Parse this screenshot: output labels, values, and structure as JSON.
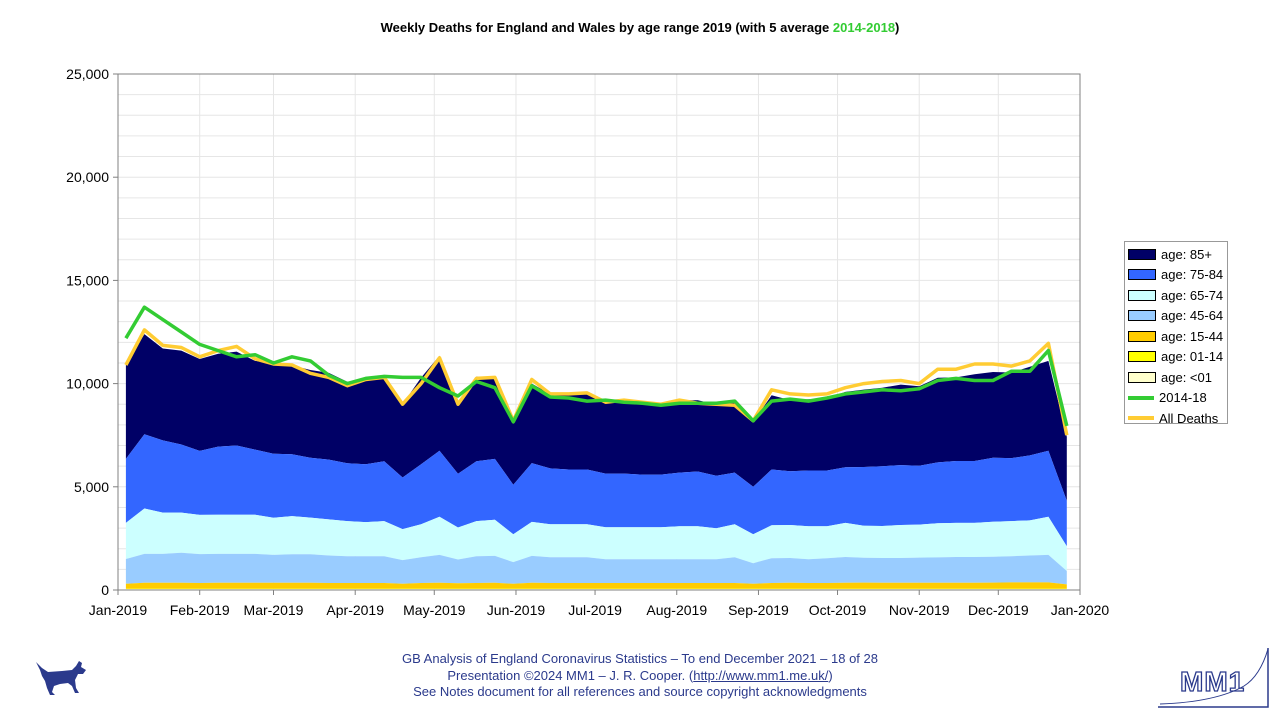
{
  "title": {
    "prefix": "Weekly Deaths for England and Wales by age range 2019 (with 5 average ",
    "highlight": "2014-2018",
    "suffix": ")"
  },
  "footer": {
    "line1": "GB Analysis of England Coronavirus Statistics – To end December 2021 – 18 of 28",
    "line2_prefix": "Presentation ©2024 MM1 – J. R. Cooper. (",
    "line2_link": "http://www.mm1.me.uk/",
    "line2_suffix": ")",
    "line3": "See Notes document for all references and source copyright acknowledgments"
  },
  "logo": {
    "text": "MM1"
  },
  "colors": {
    "age_85": "#000066",
    "age_75_84": "#3366ff",
    "age_65_74": "#ccffff",
    "age_45_64": "#99ccff",
    "age_15_44": "#ffcc00",
    "age_01_14": "#ffff00",
    "age_lt01": "#ffffcc",
    "avg": "#33cc33",
    "all": "#ffcc33",
    "brand": "#2b3a8c"
  },
  "chart_data": {
    "type": "area",
    "title": "Weekly Deaths for England and Wales by age range 2019 (with 5 average 2014-2018)",
    "xlabel": "",
    "ylabel": "",
    "ylim": [
      0,
      25000
    ],
    "yticks": [
      0,
      5000,
      10000,
      15000,
      20000,
      25000
    ],
    "ytick_labels": [
      "0",
      "5,000",
      "10,000",
      "15,000",
      "20,000",
      "25,000"
    ],
    "xlim": [
      "2019-01-01",
      "2020-01-01"
    ],
    "xtick_labels": [
      "Jan-2019",
      "Feb-2019",
      "Mar-2019",
      "Apr-2019",
      "May-2019",
      "Jun-2019",
      "Jul-2019",
      "Aug-2019",
      "Sep-2019",
      "Oct-2019",
      "Nov-2019",
      "Dec-2019",
      "Jan-2020"
    ],
    "grid": true,
    "legend_position": "right",
    "legend": [
      "age: 85+",
      "age: 75-84",
      "age: 65-74",
      "age: 45-64",
      "age: 15-44",
      "age: 01-14",
      "age: <01",
      "2014-18",
      "All Deaths"
    ],
    "x": [
      "2019-01-04",
      "2019-01-11",
      "2019-01-18",
      "2019-01-25",
      "2019-02-01",
      "2019-02-08",
      "2019-02-15",
      "2019-02-22",
      "2019-03-01",
      "2019-03-08",
      "2019-03-15",
      "2019-03-22",
      "2019-03-29",
      "2019-04-05",
      "2019-04-12",
      "2019-04-19",
      "2019-04-26",
      "2019-05-03",
      "2019-05-10",
      "2019-05-17",
      "2019-05-24",
      "2019-05-31",
      "2019-06-07",
      "2019-06-14",
      "2019-06-21",
      "2019-06-28",
      "2019-07-05",
      "2019-07-12",
      "2019-07-19",
      "2019-07-26",
      "2019-08-02",
      "2019-08-09",
      "2019-08-16",
      "2019-08-23",
      "2019-08-30",
      "2019-09-06",
      "2019-09-13",
      "2019-09-20",
      "2019-09-27",
      "2019-10-04",
      "2019-10-11",
      "2019-10-18",
      "2019-10-25",
      "2019-11-01",
      "2019-11-08",
      "2019-11-15",
      "2019-11-22",
      "2019-11-29",
      "2019-12-06",
      "2019-12-13",
      "2019-12-20",
      "2019-12-27"
    ],
    "series": [
      {
        "name": "age: <01",
        "values": [
          50,
          50,
          50,
          50,
          50,
          50,
          50,
          50,
          50,
          50,
          50,
          50,
          50,
          50,
          50,
          50,
          50,
          50,
          50,
          50,
          50,
          50,
          50,
          50,
          50,
          50,
          50,
          50,
          50,
          50,
          50,
          50,
          50,
          50,
          50,
          50,
          50,
          50,
          50,
          50,
          50,
          50,
          50,
          50,
          50,
          50,
          50,
          50,
          50,
          50,
          50,
          50
        ]
      },
      {
        "name": "age: 01-14",
        "values": [
          20,
          20,
          20,
          20,
          20,
          20,
          20,
          20,
          20,
          20,
          20,
          20,
          20,
          20,
          20,
          20,
          20,
          20,
          20,
          20,
          20,
          20,
          20,
          20,
          20,
          20,
          20,
          20,
          20,
          20,
          20,
          20,
          20,
          20,
          20,
          20,
          20,
          20,
          20,
          20,
          20,
          20,
          20,
          20,
          20,
          20,
          20,
          20,
          20,
          20,
          20,
          20
        ]
      },
      {
        "name": "age: 15-44",
        "values": [
          230,
          280,
          280,
          280,
          270,
          280,
          280,
          280,
          280,
          280,
          280,
          270,
          270,
          270,
          270,
          230,
          270,
          280,
          260,
          270,
          280,
          230,
          280,
          270,
          270,
          270,
          270,
          270,
          270,
          270,
          270,
          270,
          270,
          270,
          230,
          270,
          280,
          270,
          270,
          280,
          290,
          280,
          280,
          280,
          280,
          280,
          280,
          290,
          300,
          300,
          300,
          200
        ]
      },
      {
        "name": "age: 45-64",
        "values": [
          1200,
          1400,
          1400,
          1450,
          1400,
          1400,
          1400,
          1400,
          1350,
          1380,
          1380,
          1330,
          1300,
          1300,
          1300,
          1150,
          1250,
          1350,
          1150,
          1300,
          1300,
          1050,
          1300,
          1250,
          1250,
          1250,
          1150,
          1150,
          1150,
          1150,
          1150,
          1150,
          1150,
          1250,
          1000,
          1200,
          1200,
          1150,
          1200,
          1250,
          1200,
          1200,
          1200,
          1220,
          1230,
          1250,
          1250,
          1250,
          1270,
          1300,
          1330,
          650
        ]
      },
      {
        "name": "age: 65-74",
        "values": [
          1750,
          2200,
          2000,
          1950,
          1900,
          1900,
          1900,
          1900,
          1800,
          1850,
          1780,
          1750,
          1700,
          1650,
          1700,
          1500,
          1600,
          1850,
          1550,
          1700,
          1750,
          1350,
          1650,
          1600,
          1600,
          1600,
          1550,
          1550,
          1550,
          1550,
          1600,
          1600,
          1500,
          1600,
          1400,
          1600,
          1600,
          1600,
          1550,
          1650,
          1550,
          1550,
          1600,
          1600,
          1650,
          1650,
          1650,
          1700,
          1700,
          1700,
          1850,
          1200
        ]
      },
      {
        "name": "age: 75-84",
        "values": [
          3100,
          3600,
          3500,
          3300,
          3100,
          3300,
          3350,
          3150,
          3100,
          3000,
          2900,
          2900,
          2800,
          2800,
          2900,
          2500,
          2900,
          3200,
          2600,
          2900,
          2950,
          2400,
          2850,
          2700,
          2650,
          2650,
          2600,
          2600,
          2550,
          2550,
          2600,
          2650,
          2550,
          2500,
          2300,
          2700,
          2600,
          2700,
          2700,
          2700,
          2850,
          2900,
          2900,
          2850,
          2950,
          3000,
          3000,
          3100,
          3050,
          3150,
          3200,
          2200
        ]
      },
      {
        "name": "age: 85+",
        "values": [
          4550,
          4850,
          4450,
          4550,
          4450,
          4500,
          4550,
          4300,
          4400,
          4300,
          4250,
          4200,
          3950,
          4050,
          4000,
          3550,
          4200,
          4600,
          3350,
          4100,
          3950,
          2950,
          3850,
          3600,
          3650,
          3700,
          3450,
          3550,
          3500,
          3450,
          3500,
          3450,
          3450,
          3400,
          3150,
          3600,
          3450,
          3450,
          3500,
          3650,
          3750,
          3800,
          3900,
          3850,
          4100,
          4050,
          4200,
          4150,
          4150,
          4300,
          4350,
          3100
        ]
      },
      {
        "name": "2014-18",
        "values": [
          12200,
          13700,
          13100,
          12500,
          11900,
          11600,
          11300,
          11400,
          11000,
          11300,
          11100,
          10400,
          10000,
          10250,
          10350,
          10300,
          10300,
          9800,
          9400,
          10100,
          9800,
          8150,
          9900,
          9350,
          9300,
          9150,
          9200,
          9100,
          9050,
          8950,
          9050,
          9050,
          9050,
          9150,
          8200,
          9150,
          9250,
          9150,
          9300,
          9500,
          9600,
          9700,
          9650,
          9750,
          10150,
          10250,
          10150,
          10150,
          10600,
          10600,
          11600,
          7950
        ]
      },
      {
        "name": "All Deaths",
        "values": [
          10900,
          12600,
          11850,
          11750,
          11300,
          11600,
          11800,
          11200,
          10950,
          10900,
          10500,
          10300,
          9900,
          10200,
          10300,
          9000,
          10000,
          11250,
          9000,
          10250,
          10300,
          8200,
          10200,
          9500,
          9500,
          9550,
          9100,
          9200,
          9100,
          9000,
          9200,
          9050,
          9000,
          8950,
          8200,
          9700,
          9500,
          9450,
          9500,
          9800,
          10000,
          10100,
          10150,
          10000,
          10700,
          10700,
          10950,
          10950,
          10850,
          11100,
          11950,
          7500
        ]
      }
    ]
  }
}
